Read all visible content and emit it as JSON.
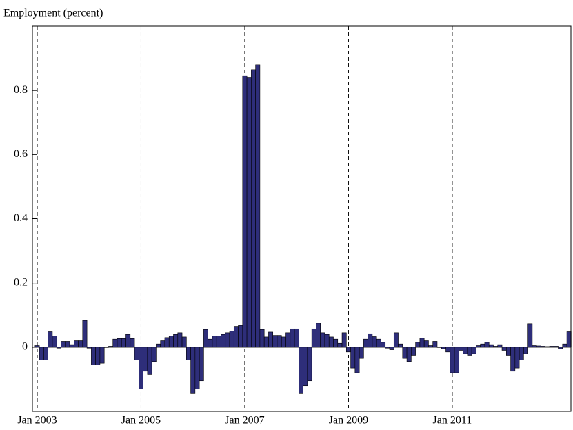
{
  "chart_data": {
    "type": "bar",
    "y_label": "Employment (percent)",
    "categories": [
      "Jan 2003",
      null,
      null,
      null,
      null,
      null,
      null,
      null,
      null,
      null,
      null,
      null,
      null,
      null,
      null,
      null,
      null,
      null,
      null,
      null,
      null,
      null,
      null,
      null,
      "Jan 2005",
      null,
      null,
      null,
      null,
      null,
      null,
      null,
      null,
      null,
      null,
      null,
      null,
      null,
      null,
      null,
      null,
      null,
      null,
      null,
      null,
      null,
      null,
      null,
      "Jan 2007",
      null,
      null,
      null,
      null,
      null,
      null,
      null,
      null,
      null,
      null,
      null,
      null,
      null,
      null,
      null,
      null,
      null,
      null,
      null,
      null,
      null,
      null,
      null,
      "Jan 2009",
      null,
      null,
      null,
      null,
      null,
      null,
      null,
      null,
      null,
      null,
      null,
      null,
      null,
      null,
      null,
      null,
      null,
      null,
      null,
      null,
      null,
      null,
      null,
      "Jan 2011",
      null,
      null,
      null,
      null,
      null,
      null,
      null,
      null,
      null,
      null,
      null,
      null,
      null,
      null,
      null,
      null,
      null,
      null,
      null,
      null,
      null,
      null,
      null,
      null,
      null,
      null,
      null
    ],
    "values": [
      0.005,
      -0.04,
      -0.04,
      0.048,
      0.035,
      -0.003,
      0.018,
      0.018,
      0.008,
      0.02,
      0.02,
      0.083,
      -0.003,
      -0.055,
      -0.055,
      -0.05,
      0.0,
      0.003,
      0.025,
      0.027,
      0.027,
      0.04,
      0.027,
      -0.04,
      -0.13,
      -0.075,
      -0.085,
      -0.045,
      0.01,
      0.02,
      0.03,
      0.035,
      0.04,
      0.045,
      0.032,
      -0.04,
      -0.145,
      -0.13,
      -0.105,
      0.055,
      0.025,
      0.035,
      0.035,
      0.04,
      0.045,
      0.05,
      0.065,
      0.068,
      0.845,
      0.84,
      0.865,
      0.88,
      0.055,
      0.032,
      0.047,
      0.037,
      0.037,
      0.032,
      0.045,
      0.057,
      0.057,
      -0.145,
      -0.12,
      -0.105,
      0.057,
      0.075,
      0.045,
      0.04,
      0.032,
      0.025,
      0.012,
      0.045,
      -0.015,
      -0.065,
      -0.08,
      -0.035,
      0.025,
      0.042,
      0.033,
      0.025,
      0.015,
      -0.003,
      -0.008,
      0.045,
      0.01,
      -0.035,
      -0.045,
      -0.025,
      0.015,
      0.028,
      0.02,
      0.005,
      0.018,
      0.0,
      -0.005,
      -0.015,
      -0.08,
      -0.08,
      -0.01,
      -0.02,
      -0.025,
      -0.02,
      0.005,
      0.01,
      0.015,
      0.008,
      0.003,
      0.008,
      -0.01,
      -0.025,
      -0.075,
      -0.065,
      -0.04,
      -0.02,
      0.073,
      0.005,
      0.004,
      0.003,
      0.002,
      0.003,
      0.003,
      -0.005,
      0.01,
      0.048
    ],
    "color": "#2e2e7a",
    "ylim": [
      -0.2,
      1.0
    ],
    "yticks": [
      0,
      0.2,
      0.4,
      0.6,
      0.8
    ]
  }
}
